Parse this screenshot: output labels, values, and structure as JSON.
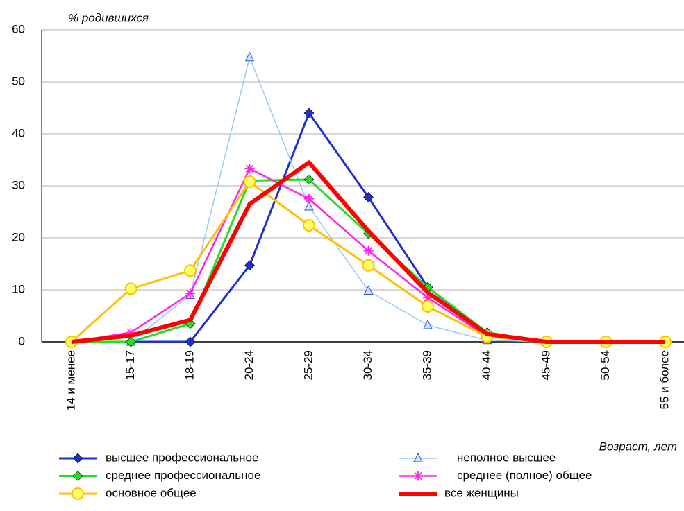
{
  "chart_data": {
    "type": "line",
    "y_label": "% родившихся",
    "x_label": "Возраст, лет",
    "categories": [
      "14 и менее",
      "15-17",
      "18-19",
      "20-24",
      "25-29",
      "30-34",
      "35-39",
      "40-44",
      "45-49",
      "50-54",
      "55 и более"
    ],
    "ylim": [
      0,
      60
    ],
    "yticks": [
      0,
      10,
      20,
      30,
      40,
      50,
      60
    ],
    "grid": true,
    "series": [
      {
        "name": "высшее профессиональное",
        "color": "#1f2fd0",
        "marker": "diamond",
        "width": 3,
        "values": [
          0,
          0,
          0,
          14.7,
          44,
          27.8,
          10.5,
          1.5,
          0,
          0,
          0
        ]
      },
      {
        "name": "неполное высшее",
        "color": "#99c8f5",
        "marker": "triangle",
        "width": 1.5,
        "values": [
          0,
          0,
          9,
          54.7,
          26,
          9.8,
          3.2,
          0.3,
          0,
          0,
          0
        ]
      },
      {
        "name": "среднее профессиональное",
        "color": "#22dd22",
        "marker": "diamond",
        "width": 3,
        "values": [
          0,
          0,
          3.5,
          31,
          31.2,
          20.8,
          10.5,
          1.8,
          0,
          0,
          0
        ]
      },
      {
        "name": "среднее (полное) общее",
        "color": "#ff22ee",
        "marker": "star",
        "width": 2.5,
        "values": [
          0,
          1.8,
          9.3,
          33.3,
          27.5,
          17.5,
          8.5,
          1,
          0,
          0,
          0
        ]
      },
      {
        "name": "основное общее",
        "color": "#ffc000",
        "marker": "circle",
        "width": 3,
        "values": [
          0,
          10.2,
          13.7,
          30.8,
          22.4,
          14.7,
          6.8,
          1,
          0,
          0,
          0
        ]
      },
      {
        "name": "все женщины",
        "color": "#ff0000",
        "marker": "none",
        "width": 6,
        "values": [
          0,
          1.2,
          4.2,
          26.5,
          34.5,
          21.3,
          9.5,
          1.5,
          0,
          0,
          0
        ]
      }
    ]
  }
}
